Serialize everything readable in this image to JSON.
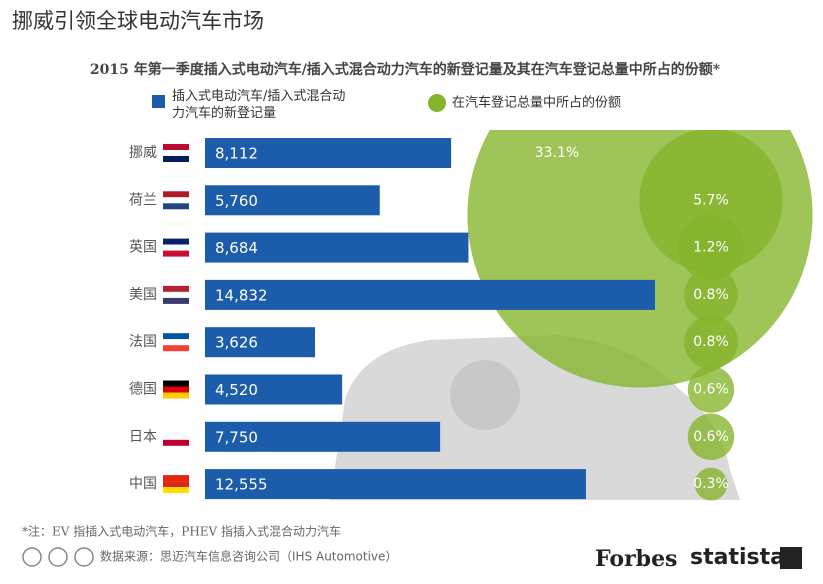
{
  "chart_data": {
    "type": "bar",
    "title": "挪威引领全球电动汽车市场",
    "subtitle": "2015 年第一季度插入式电动汽车/插入式混合动力汽车的新登记量及其在汽车登记总量中所占的份额*",
    "categories": [
      "挪威",
      "荷兰",
      "英国",
      "美国",
      "法国",
      "德国",
      "日本",
      "中国"
    ],
    "series": [
      {
        "name": "插入式电动汽车/插入式混合动力汽车的新登记量",
        "color": "#1b5cab",
        "values": [
          8112,
          5760,
          8684,
          14832,
          3626,
          4520,
          7750,
          12555
        ],
        "value_labels": [
          "8,112",
          "5,760",
          "8,684",
          "14,832",
          "3,626",
          "4,520",
          "7,750",
          "12,555"
        ]
      },
      {
        "name": "在汽车登记总量中所占的份额",
        "type": "bubble",
        "color": "#84b52a",
        "values": [
          33.1,
          5.7,
          1.2,
          0.8,
          0.8,
          0.6,
          0.6,
          0.3
        ],
        "value_labels": [
          "33.1%",
          "5.7%",
          "1.2%",
          "0.8%",
          "0.8%",
          "0.6%",
          "0.6%",
          "0.3%"
        ]
      }
    ],
    "footnote": "*注：EV 指插入式电动汽车，PHEV 指插入式混合动力汽车",
    "source": "数据来源：思迈汽车信息咨询公司（IHS Automotive）",
    "brands": [
      "Forbes",
      "statista"
    ]
  }
}
